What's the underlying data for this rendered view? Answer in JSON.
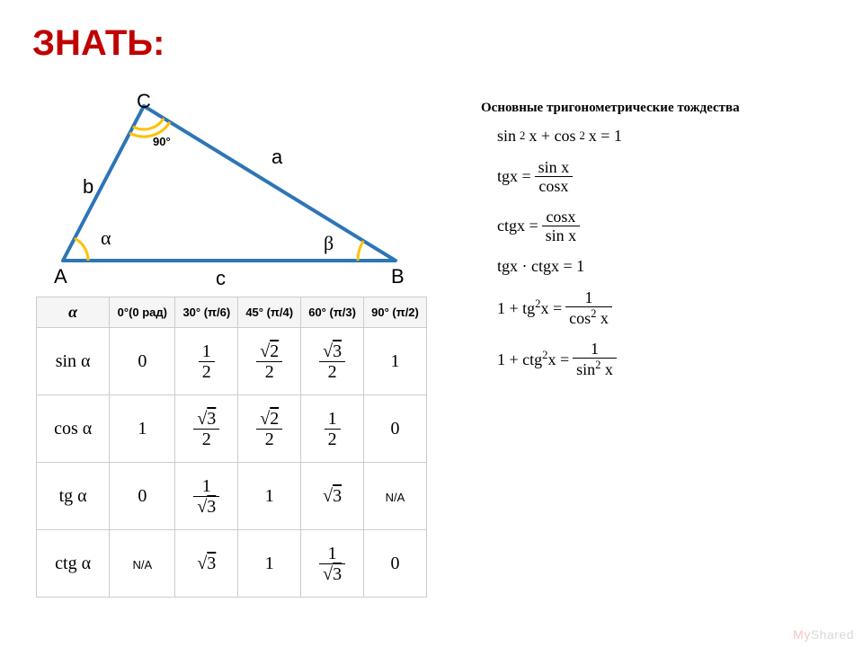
{
  "title": "ЗНАТЬ:",
  "title_color": "#c00000",
  "triangle": {
    "stroke": "#2e75b6",
    "arc": "#ffc000",
    "A": "A",
    "B": "B",
    "C": "C",
    "a": "a",
    "b": "b",
    "c": "c",
    "alpha": "α",
    "beta": "β",
    "ninety": "90°",
    "points": {
      "A": [
        20,
        190
      ],
      "C": [
        110,
        18
      ],
      "B": [
        390,
        190
      ]
    }
  },
  "table": {
    "alpha": "α",
    "headers": [
      "0°(0 рад)",
      "30° (π/6)",
      "45° (π/4)",
      "60° (π/3)",
      "90° (π/2)"
    ],
    "rows": [
      {
        "fn": "sin α",
        "cells": [
          {
            "t": "plain",
            "v": "0"
          },
          {
            "t": "frac",
            "n": "1",
            "d": "2"
          },
          {
            "t": "frac",
            "n": "√2",
            "d": "2",
            "nsqrt": true
          },
          {
            "t": "frac",
            "n": "√3",
            "d": "2",
            "nsqrt": true
          },
          {
            "t": "plain",
            "v": "1"
          }
        ]
      },
      {
        "fn": "cos α",
        "cells": [
          {
            "t": "plain",
            "v": "1"
          },
          {
            "t": "frac",
            "n": "√3",
            "d": "2",
            "nsqrt": true
          },
          {
            "t": "frac",
            "n": "√2",
            "d": "2",
            "nsqrt": true
          },
          {
            "t": "frac",
            "n": "1",
            "d": "2"
          },
          {
            "t": "plain",
            "v": "0"
          }
        ]
      },
      {
        "fn": "tg α",
        "cells": [
          {
            "t": "plain",
            "v": "0"
          },
          {
            "t": "frac",
            "n": "1",
            "d": "√3",
            "dsqrt": true
          },
          {
            "t": "plain",
            "v": "1"
          },
          {
            "t": "sqrt",
            "v": "3"
          },
          {
            "t": "na",
            "v": "N/A"
          }
        ]
      },
      {
        "fn": "ctg α",
        "cells": [
          {
            "t": "na",
            "v": "N/A"
          },
          {
            "t": "sqrt",
            "v": "3"
          },
          {
            "t": "plain",
            "v": "1"
          },
          {
            "t": "frac",
            "n": "1",
            "d": "√3",
            "dsqrt": true
          },
          {
            "t": "plain",
            "v": "0"
          }
        ]
      }
    ]
  },
  "identities": {
    "header": "Основные тригонометрические тождества",
    "lines": [
      {
        "t": "eq1",
        "lhs": "sin",
        "sup": "2",
        "mid": "x + cos",
        "sup2": "2",
        "rhs": "x = 1"
      },
      {
        "t": "fraceq",
        "lhs": "tgx =",
        "n": "sin x",
        "d": "cosx"
      },
      {
        "t": "fraceq",
        "lhs": "ctgx =",
        "n": "cosx",
        "d": "sin x"
      },
      {
        "t": "plain",
        "v": "tgx · ctgx = 1"
      },
      {
        "t": "fraceq",
        "lhs_a": "1 + tg",
        "lhs_sup": "2",
        "lhs_b": "x =",
        "n": "1",
        "d": "cos",
        "dsup": "2",
        "dtail": "x"
      },
      {
        "t": "fraceq",
        "lhs_a": "1 + ctg",
        "lhs_sup": "2",
        "lhs_b": "x =",
        "n": "1",
        "d": "sin",
        "dsup": "2",
        "dtail": "x"
      }
    ]
  },
  "watermark": {
    "my": "My",
    "shared": "Shared"
  }
}
